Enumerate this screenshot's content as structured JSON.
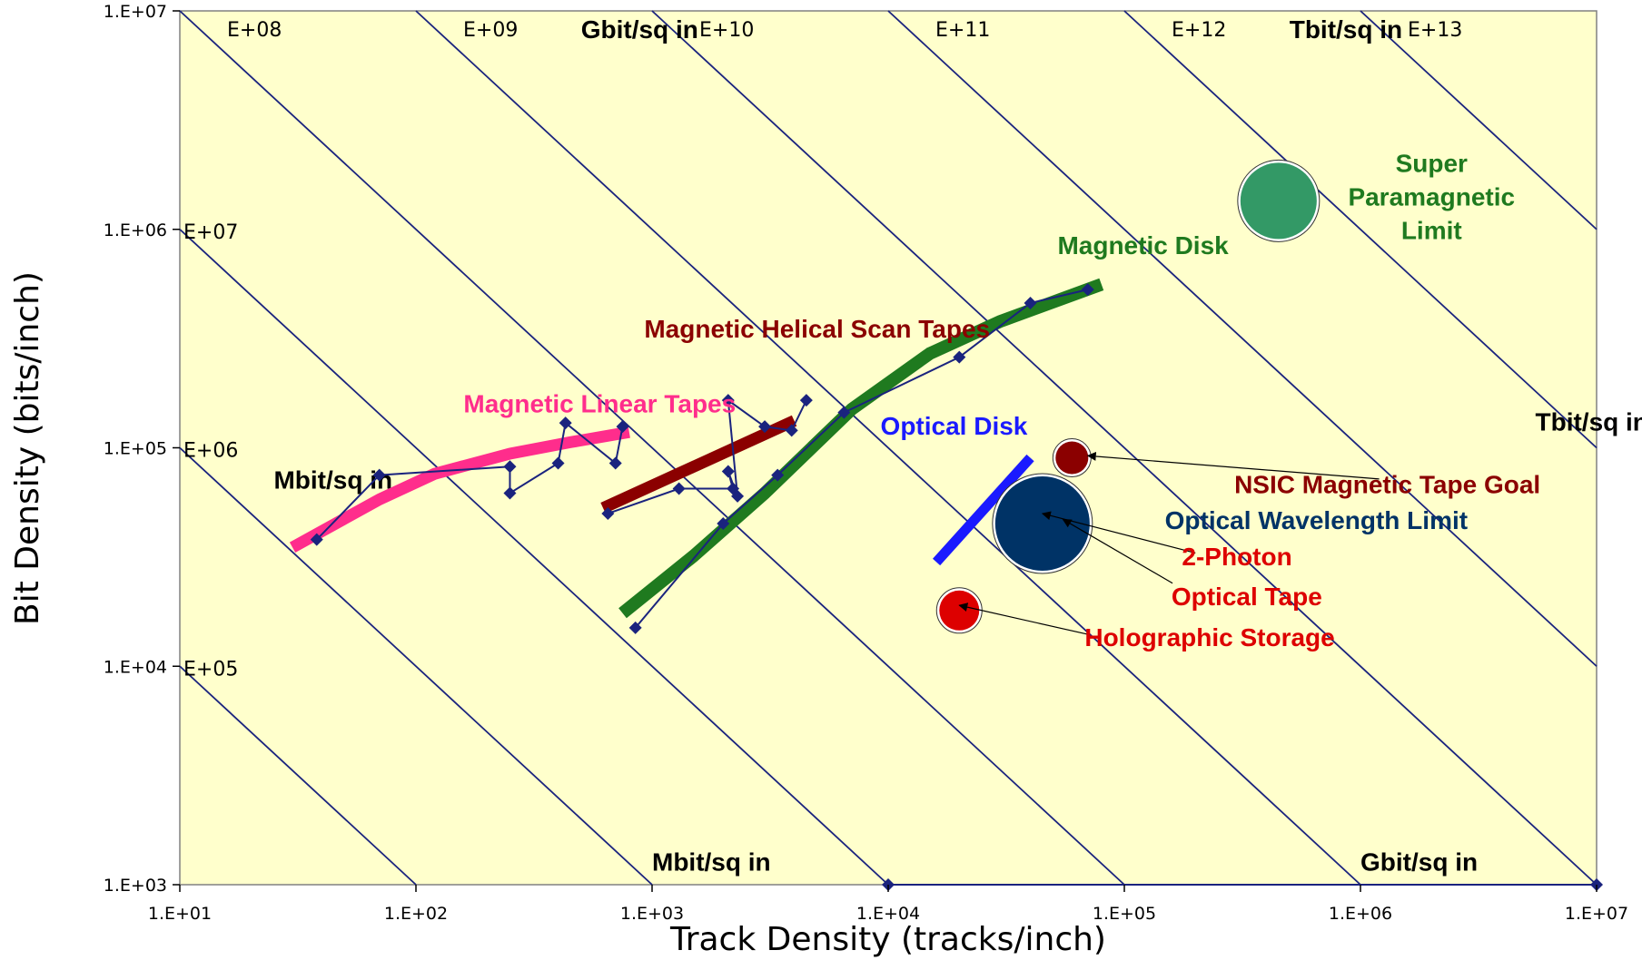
{
  "chart_data": {
    "type": "scatter",
    "xlabel": "Track Density (tracks/inch)",
    "ylabel": "Bit Density (bits/inch)",
    "x_scale": "log",
    "y_scale": "log",
    "xlim": [
      10,
      10000000
    ],
    "ylim": [
      1000,
      10000000
    ],
    "x_ticks": [
      "1.E+01",
      "1.E+02",
      "1.E+03",
      "1.E+04",
      "1.E+05",
      "1.E+06",
      "1.E+07"
    ],
    "y_ticks": [
      "1.E+03",
      "1.E+04",
      "1.E+05",
      "1.E+06",
      "1.E+07"
    ],
    "plot_background": "#ffffcc",
    "iso_line_color": "#1a237e",
    "iso_lines": [
      {
        "product": 100000.0,
        "label": "E+05"
      },
      {
        "product": 1000000.0,
        "label": "E+06"
      },
      {
        "product": 10000000.0,
        "label": "E+07"
      },
      {
        "product": 100000000.0,
        "label": "E+08"
      },
      {
        "product": 1000000000.0,
        "label": "E+09"
      },
      {
        "product": 10000000000.0,
        "label": "E+10"
      },
      {
        "product": 100000000000.0,
        "label": "E+11"
      },
      {
        "product": 1000000000000.0,
        "label": "E+12"
      },
      {
        "product": 10000000000000.0,
        "label": "E+13"
      }
    ],
    "area_labels": [
      {
        "text": "Gbit/sq in",
        "x": 500,
        "y": 7500000
      },
      {
        "text": "Tbit/sq in",
        "x": 500000,
        "y": 7500000
      },
      {
        "text": "Mbit/sq in",
        "x": 25,
        "y": 65000
      },
      {
        "text": "Tbit/sq in",
        "x": 5500000,
        "y": 120000
      },
      {
        "text": "Mbit/sq in",
        "x": 1000,
        "y": 1160
      },
      {
        "text": "Gbit/sq in",
        "x": 1000000,
        "y": 1160
      }
    ],
    "marker_color": "#1a237e",
    "data_series": [
      {
        "points": [
          [
            38,
            38000
          ],
          [
            70,
            75000
          ],
          [
            250,
            82000
          ],
          [
            250,
            62000
          ],
          [
            400,
            85000
          ],
          [
            430,
            130000
          ],
          [
            700,
            85000
          ],
          [
            750,
            125000
          ]
        ]
      },
      {
        "points": [
          [
            650,
            50000
          ],
          [
            1300,
            65000
          ],
          [
            2200,
            65000
          ],
          [
            2100,
            78000
          ],
          [
            2300,
            60000
          ],
          [
            2100,
            165000
          ],
          [
            3000,
            125000
          ],
          [
            3900,
            120000
          ],
          [
            4500,
            165000
          ]
        ]
      },
      {
        "points": [
          [
            850,
            15000
          ],
          [
            2000,
            45000
          ],
          [
            3400,
            75000
          ],
          [
            6500,
            145000
          ],
          [
            20000,
            260000
          ],
          [
            40000,
            460000
          ],
          [
            70000,
            530000
          ]
        ]
      },
      {
        "points": [
          [
            10000,
            1000
          ],
          [
            10000000,
            1000
          ]
        ]
      }
    ],
    "trend_lines": [
      {
        "color": "#ff2d8c",
        "width": 13,
        "points": [
          [
            30,
            35000
          ],
          [
            70,
            58000
          ],
          [
            120,
            76000
          ],
          [
            250,
            94000
          ],
          [
            450,
            106000
          ],
          [
            800,
            118000
          ]
        ]
      },
      {
        "color": "#8b0000",
        "width": 13,
        "points": [
          [
            620,
            53000
          ],
          [
            4000,
            133000
          ]
        ]
      },
      {
        "color": "#1f7a1f",
        "width": 14,
        "points": [
          [
            750,
            17500
          ],
          [
            1500,
            32000
          ],
          [
            3000,
            62000
          ],
          [
            7000,
            150000
          ],
          [
            15000,
            270000
          ],
          [
            30000,
            380000
          ],
          [
            80000,
            560000
          ]
        ]
      },
      {
        "color": "#1a1aff",
        "width": 11,
        "points": [
          [
            16000,
            30000
          ],
          [
            40000,
            90000
          ]
        ]
      }
    ],
    "bubbles": [
      {
        "x": 450000,
        "y": 1350000,
        "r": 42,
        "color": "#339966"
      },
      {
        "x": 45000,
        "y": 45000,
        "r": 52,
        "color": "#003366"
      },
      {
        "x": 60000,
        "y": 90000,
        "r": 18,
        "color": "#8b0000"
      },
      {
        "x": 20000,
        "y": 18000,
        "r": 22,
        "color": "#dd0000"
      }
    ],
    "labels": [
      {
        "text": "Magnetic Disk",
        "x": 120000,
        "y": 770000,
        "color": "#1f7a1f"
      },
      {
        "text": "Magnetic Helical Scan Tapes",
        "x": 5000,
        "y": 320000,
        "color": "#8b0000"
      },
      {
        "text": "Magnetic Linear Tapes",
        "x": 600,
        "y": 145000,
        "color": "#ff2d8c"
      },
      {
        "text": "Optical Disk",
        "x": 19000,
        "y": 115000,
        "color": "#1a1aff"
      },
      {
        "text": "NSIC Magnetic Tape Goal",
        "x": 1300000,
        "y": 62000,
        "color": "#8b0000"
      },
      {
        "text": "Optical Wavelength Limit",
        "x": 650000,
        "y": 42500,
        "color": "#003366"
      },
      {
        "text": "2-Photon",
        "x": 300000,
        "y": 29000,
        "color": "#dd0000"
      },
      {
        "text": "Optical Tape",
        "x": 330000,
        "y": 19000,
        "color": "#dd0000"
      },
      {
        "text": "Holographic Storage",
        "x": 230000,
        "y": 12400,
        "color": "#dd0000"
      }
    ],
    "super_paramagnetic_label": {
      "lines": [
        "Super",
        "Paramagnetic",
        "Limit"
      ],
      "x": 2000000,
      "y": 1400000,
      "color": "#1f7a1f"
    },
    "arrows": [
      {
        "from": [
          1200000,
          72000
        ],
        "to": [
          70000,
          92000
        ]
      },
      {
        "from": [
          200000,
          33000
        ],
        "to": [
          45000,
          50000
        ]
      },
      {
        "from": [
          160000,
          24000
        ],
        "to": [
          55000,
          47000
        ]
      },
      {
        "from": [
          70000,
          14000
        ],
        "to": [
          20000,
          19000
        ]
      }
    ]
  }
}
